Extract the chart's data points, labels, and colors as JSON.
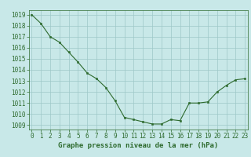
{
  "x": [
    0,
    1,
    2,
    3,
    4,
    5,
    6,
    7,
    8,
    9,
    10,
    11,
    12,
    13,
    14,
    15,
    16,
    17,
    18,
    19,
    20,
    21,
    22,
    23
  ],
  "y": [
    1019.0,
    1018.2,
    1017.0,
    1016.5,
    1015.6,
    1014.7,
    1013.7,
    1013.2,
    1012.4,
    1011.2,
    1009.7,
    1009.5,
    1009.3,
    1009.1,
    1009.1,
    1009.5,
    1009.4,
    1011.0,
    1011.0,
    1011.1,
    1012.0,
    1012.6,
    1013.1,
    1013.2
  ],
  "line_color": "#2d6a2d",
  "marker_color": "#2d6a2d",
  "bg_color": "#c8e8e8",
  "grid_color": "#9ec8c8",
  "ylabel_ticks": [
    1009,
    1010,
    1011,
    1012,
    1013,
    1014,
    1015,
    1016,
    1017,
    1018,
    1019
  ],
  "ylim": [
    1008.6,
    1019.4
  ],
  "xlim": [
    -0.3,
    23.3
  ],
  "xlabel": "Graphe pression niveau de la mer (hPa)",
  "axis_fontsize": 5.5,
  "label_fontsize": 6.5
}
